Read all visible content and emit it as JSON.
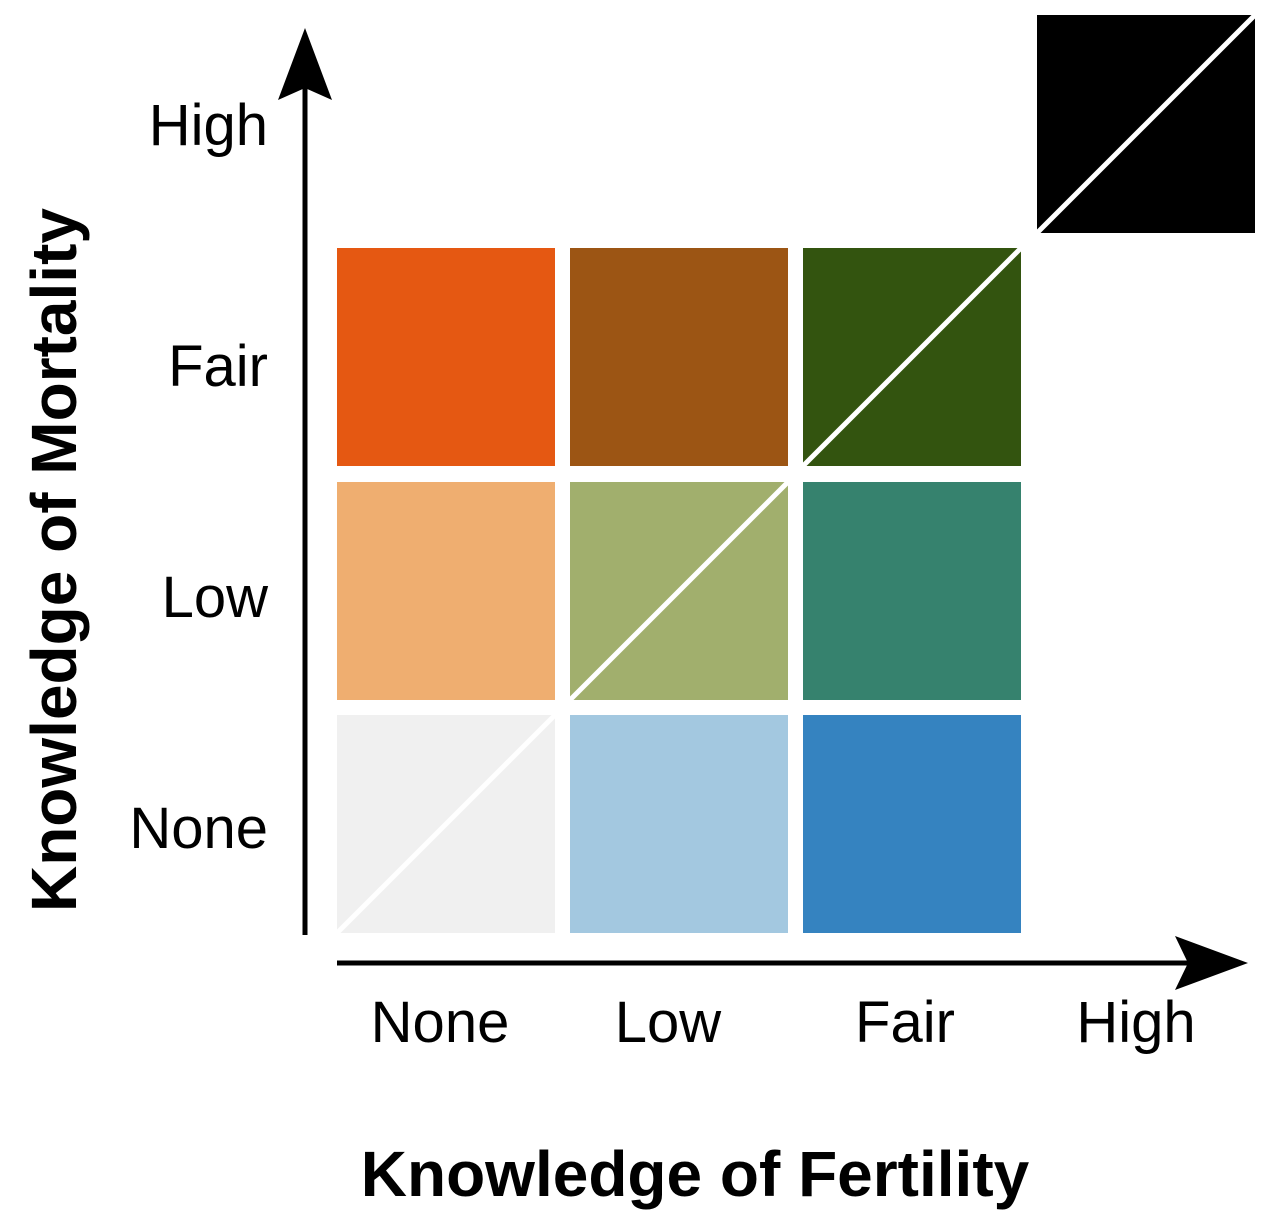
{
  "chart_data": {
    "type": "heatmap",
    "title": "",
    "xlabel": "Knowledge of Fertility",
    "ylabel": "Knowledge of Mortality",
    "x_levels": [
      "None",
      "Low",
      "Fair",
      "High"
    ],
    "y_levels": [
      "None",
      "Low",
      "Fair",
      "High"
    ],
    "cells": [
      {
        "x": "None",
        "y": "None",
        "color": "#f0f0f0",
        "diagonal": true
      },
      {
        "x": "Low",
        "y": "None",
        "color": "#a3c8e0",
        "diagonal": false
      },
      {
        "x": "Fair",
        "y": "None",
        "color": "#3583c0",
        "diagonal": false
      },
      {
        "x": "None",
        "y": "Low",
        "color": "#efae70",
        "diagonal": false
      },
      {
        "x": "Low",
        "y": "Low",
        "color": "#a1af6d",
        "diagonal": true
      },
      {
        "x": "Fair",
        "y": "Low",
        "color": "#36826e",
        "diagonal": false
      },
      {
        "x": "None",
        "y": "Fair",
        "color": "#e55812",
        "diagonal": false
      },
      {
        "x": "Low",
        "y": "Fair",
        "color": "#9c5514",
        "diagonal": false
      },
      {
        "x": "Fair",
        "y": "Fair",
        "color": "#33540f",
        "diagonal": true
      },
      {
        "x": "High",
        "y": "High",
        "color": "#000000",
        "diagonal": true
      }
    ]
  }
}
